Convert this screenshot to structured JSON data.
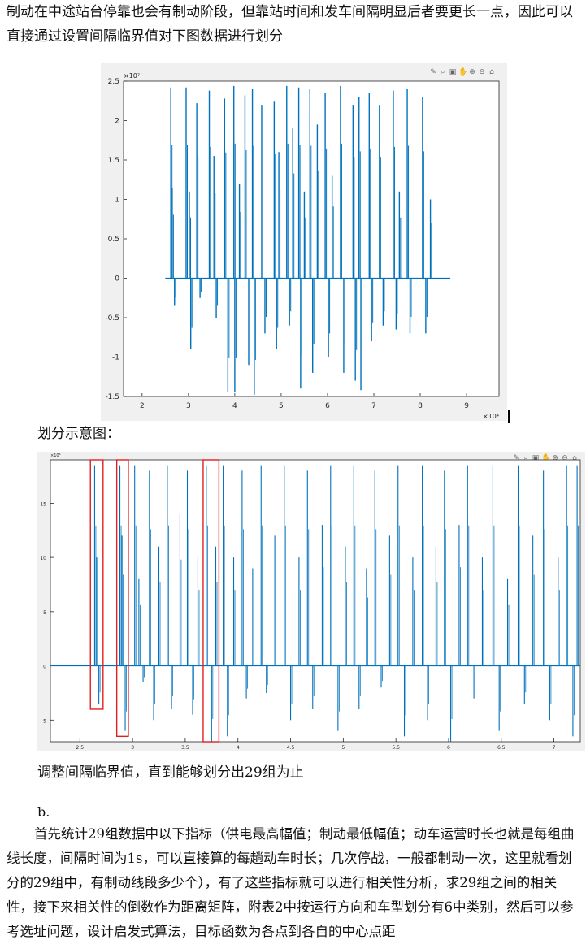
{
  "paragraph1": "制动在中途站台停靠也会有制动阶段，但靠站时间和发车间隔明显后者要更长一点，因此可以直接通过设置间隔临界值对下图数据进行划分",
  "caption_division": "划分示意图：",
  "caption_adjust": "调整间隔临界值，直到能够划分出29组为止",
  "section_label": "b.",
  "paragraph2": "首先统计29组数据中以下指标（供电最高幅值；制动最低幅值；动车运营时长也就是每组曲线长度，间隔时间为1s，可以直接算的每趟动车时长；几次停战，一般都制动一次，这里就看划分的29组中，有制动线段多少个），有了这些指标就可以进行相关性分析，求29组之间的相关性，接下来相关性的倒数作为距离矩阵，附表2中按运行方向和车型划分有6中类别，然后可以参考选址问题，设计启发式算法，目标函数为各点到各自的中心点距",
  "toolbar_icons": [
    "brush-icon",
    "datatip-icon",
    "export-icon",
    "pan-icon",
    "zoom-in-icon",
    "zoom-out-icon",
    "home-icon"
  ],
  "chart_data": [
    {
      "type": "line",
      "title": "",
      "xlabel": "",
      "ylabel": "",
      "x_multiplier": "×10⁴",
      "y_multiplier": "×10⁷",
      "xlim": [
        1.6,
        9.7
      ],
      "ylim": [
        -1.5,
        2.5
      ],
      "xticks": [
        "2",
        "3",
        "4",
        "5",
        "6",
        "7",
        "8",
        "9"
      ],
      "yticks": [
        "2.5",
        "2",
        "1.5",
        "1",
        "0.5",
        "0",
        "-0.5",
        "-1",
        "-1.5"
      ],
      "series_color": "#0072bd",
      "data_start": 2.5,
      "data_end": 8.65,
      "spikes": [
        {
          "x": 2.62,
          "y": 2.42
        },
        {
          "x": 2.65,
          "y": 1.15
        },
        {
          "x": 2.7,
          "y": -0.35
        },
        {
          "x": 2.95,
          "y": 2.42
        },
        {
          "x": 3.02,
          "y": 1.1
        },
        {
          "x": 3.05,
          "y": -0.9
        },
        {
          "x": 3.18,
          "y": 2.22
        },
        {
          "x": 3.25,
          "y": -0.25
        },
        {
          "x": 3.45,
          "y": 2.38
        },
        {
          "x": 3.55,
          "y": 1.55
        },
        {
          "x": 3.6,
          "y": -0.5
        },
        {
          "x": 3.78,
          "y": 2.28
        },
        {
          "x": 3.85,
          "y": -1.45
        },
        {
          "x": 3.98,
          "y": 2.44
        },
        {
          "x": 4.0,
          "y": -1.45
        },
        {
          "x": 4.1,
          "y": 1.2
        },
        {
          "x": 4.22,
          "y": 2.32
        },
        {
          "x": 4.3,
          "y": -1.1
        },
        {
          "x": 4.38,
          "y": 2.4
        },
        {
          "x": 4.42,
          "y": -1.48
        },
        {
          "x": 4.58,
          "y": 2.2
        },
        {
          "x": 4.65,
          "y": -0.7
        },
        {
          "x": 4.85,
          "y": 2.25
        },
        {
          "x": 4.9,
          "y": -0.9
        },
        {
          "x": 4.95,
          "y": 1.6
        },
        {
          "x": 5.12,
          "y": 2.44
        },
        {
          "x": 5.18,
          "y": -0.6
        },
        {
          "x": 5.25,
          "y": 1.9
        },
        {
          "x": 5.38,
          "y": 2.42
        },
        {
          "x": 5.42,
          "y": -1.4
        },
        {
          "x": 5.5,
          "y": 1.1
        },
        {
          "x": 5.62,
          "y": 2.4
        },
        {
          "x": 5.68,
          "y": -1.2
        },
        {
          "x": 5.78,
          "y": 1.95
        },
        {
          "x": 5.95,
          "y": 2.35
        },
        {
          "x": 6.02,
          "y": -1.0
        },
        {
          "x": 6.1,
          "y": 1.3
        },
        {
          "x": 6.28,
          "y": 2.44
        },
        {
          "x": 6.35,
          "y": -1.2
        },
        {
          "x": 6.55,
          "y": 2.2
        },
        {
          "x": 6.6,
          "y": -1.3
        },
        {
          "x": 6.68,
          "y": 2.3
        },
        {
          "x": 6.72,
          "y": -1.42
        },
        {
          "x": 6.9,
          "y": 2.35
        },
        {
          "x": 6.95,
          "y": -0.8
        },
        {
          "x": 7.12,
          "y": 2.2
        },
        {
          "x": 7.2,
          "y": -0.6
        },
        {
          "x": 7.42,
          "y": 2.38
        },
        {
          "x": 7.48,
          "y": -0.65
        },
        {
          "x": 7.55,
          "y": 1.1
        },
        {
          "x": 7.72,
          "y": 2.4
        },
        {
          "x": 7.78,
          "y": -0.7
        },
        {
          "x": 8.05,
          "y": 2.3
        },
        {
          "x": 8.12,
          "y": -0.7
        },
        {
          "x": 8.22,
          "y": 1.0
        }
      ]
    },
    {
      "type": "line",
      "title": "",
      "xlabel": "",
      "ylabel": "",
      "x_multiplier": "×10⁴",
      "y_multiplier": "×10⁶",
      "xlim": [
        2.22,
        7.25
      ],
      "ylim": [
        -7,
        19
      ],
      "xticks": [
        "2.5",
        "3",
        "3.5",
        "4",
        "4.5",
        "5",
        "5.5",
        "6",
        "6.5",
        "7"
      ],
      "yticks": [
        "15",
        "10",
        "5",
        "0",
        "-5"
      ],
      "series_color": "#0072bd",
      "data_start": 2.22,
      "data_end": 7.25,
      "highlight_boxes": [
        {
          "x0": 2.6,
          "x1": 2.72,
          "y0": -4,
          "y1": 19
        },
        {
          "x0": 2.85,
          "x1": 2.96,
          "y0": -6.5,
          "y1": 19
        },
        {
          "x0": 3.67,
          "x1": 3.82,
          "y0": -7,
          "y1": 19
        }
      ],
      "spikes": [
        {
          "x": 2.64,
          "y": 18.5
        },
        {
          "x": 2.66,
          "y": 10
        },
        {
          "x": 2.68,
          "y": -3.5
        },
        {
          "x": 2.88,
          "y": 18.5
        },
        {
          "x": 2.9,
          "y": 12
        },
        {
          "x": 2.93,
          "y": -6
        },
        {
          "x": 3.02,
          "y": 18.5
        },
        {
          "x": 3.06,
          "y": 8
        },
        {
          "x": 3.1,
          "y": -1.5
        },
        {
          "x": 3.16,
          "y": 18
        },
        {
          "x": 3.2,
          "y": -5
        },
        {
          "x": 3.25,
          "y": 11
        },
        {
          "x": 3.33,
          "y": 18.5
        },
        {
          "x": 3.37,
          "y": -4
        },
        {
          "x": 3.45,
          "y": 14
        },
        {
          "x": 3.52,
          "y": 18
        },
        {
          "x": 3.57,
          "y": -4.5
        },
        {
          "x": 3.62,
          "y": 10
        },
        {
          "x": 3.7,
          "y": 18.5
        },
        {
          "x": 3.75,
          "y": -7
        },
        {
          "x": 3.79,
          "y": 11
        },
        {
          "x": 3.86,
          "y": 18.5
        },
        {
          "x": 3.9,
          "y": -6.5
        },
        {
          "x": 3.96,
          "y": 10
        },
        {
          "x": 4.04,
          "y": 18
        },
        {
          "x": 4.08,
          "y": -3
        },
        {
          "x": 4.14,
          "y": 9
        },
        {
          "x": 4.22,
          "y": 18.5
        },
        {
          "x": 4.27,
          "y": -2.5
        },
        {
          "x": 4.35,
          "y": 12
        },
        {
          "x": 4.44,
          "y": 18.5
        },
        {
          "x": 4.5,
          "y": -5
        },
        {
          "x": 4.58,
          "y": 10
        },
        {
          "x": 4.66,
          "y": 18
        },
        {
          "x": 4.71,
          "y": -4
        },
        {
          "x": 4.8,
          "y": 13
        },
        {
          "x": 4.88,
          "y": 18.5
        },
        {
          "x": 4.95,
          "y": -6
        },
        {
          "x": 5.02,
          "y": 11
        },
        {
          "x": 5.1,
          "y": 18.5
        },
        {
          "x": 5.15,
          "y": -4
        },
        {
          "x": 5.22,
          "y": 9
        },
        {
          "x": 5.3,
          "y": 18
        },
        {
          "x": 5.36,
          "y": -2
        },
        {
          "x": 5.44,
          "y": 12
        },
        {
          "x": 5.52,
          "y": 18.5
        },
        {
          "x": 5.58,
          "y": -6.5
        },
        {
          "x": 5.66,
          "y": 10
        },
        {
          "x": 5.75,
          "y": 18.5
        },
        {
          "x": 5.8,
          "y": -5
        },
        {
          "x": 5.88,
          "y": 11
        },
        {
          "x": 5.96,
          "y": 18
        },
        {
          "x": 6.02,
          "y": -7
        },
        {
          "x": 6.1,
          "y": 13
        },
        {
          "x": 6.18,
          "y": 18.5
        },
        {
          "x": 6.24,
          "y": -3
        },
        {
          "x": 6.32,
          "y": 10
        },
        {
          "x": 6.42,
          "y": 18.5
        },
        {
          "x": 6.48,
          "y": -6
        },
        {
          "x": 6.56,
          "y": 8
        },
        {
          "x": 6.66,
          "y": 18.5
        },
        {
          "x": 6.72,
          "y": -3.5
        },
        {
          "x": 6.8,
          "y": 12
        },
        {
          "x": 6.9,
          "y": 18
        },
        {
          "x": 6.96,
          "y": -5
        },
        {
          "x": 7.04,
          "y": 10
        },
        {
          "x": 7.12,
          "y": 18.5
        },
        {
          "x": 7.18,
          "y": -6.5
        },
        {
          "x": 7.22,
          "y": 18.5
        }
      ]
    }
  ]
}
